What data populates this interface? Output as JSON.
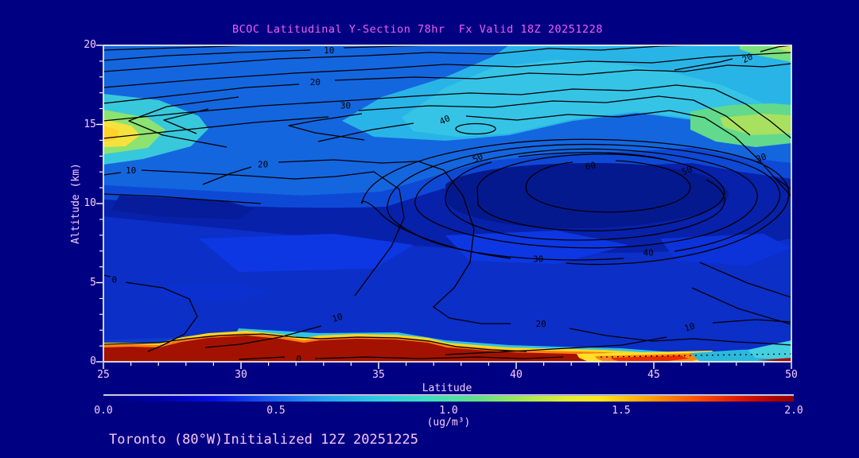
{
  "chart_data": {
    "type": "heatmap",
    "variant": "filled-contour-cross-section",
    "title": "BCOC Latitudinal Y-Section 78hr  Fx Valid 18Z 20251228",
    "annotation": "Toronto (80°W)Initialized 12Z 20251225",
    "xlabel": "Latitude",
    "ylabel": "Altitude (km)",
    "xlim": [
      25,
      50
    ],
    "ylim": [
      0,
      20
    ],
    "x_ticks": [
      25,
      30,
      35,
      40,
      45,
      50
    ],
    "x_minor_tick_step": 1,
    "y_ticks": [
      0,
      5,
      10,
      15,
      20
    ],
    "y_minor_tick_step": 1,
    "grid": false,
    "legend_position": "none",
    "colorbar": {
      "orientation": "horizontal",
      "min": 0.0,
      "max": 2.0,
      "tick_labels": [
        "0.0",
        "0.5",
        "1.0",
        "1.5",
        "2.0"
      ],
      "units_label": "(ug/m³)",
      "palette": [
        "#000080",
        "#0010e0",
        "#1a5af0",
        "#22a0ee",
        "#2ccce2",
        "#3ce0c0",
        "#62e088",
        "#9ce858",
        "#e2ee30",
        "#ffe818",
        "#ffa000",
        "#ff5000",
        "#e01800",
        "#b00000",
        "#900000"
      ]
    },
    "contour_lines": {
      "labeled_levels": [
        0,
        10,
        20,
        30,
        40,
        50,
        60
      ],
      "interval": 5,
      "color": "#000000"
    },
    "contour_labels": [
      {
        "text": "10",
        "lat": 33.2,
        "alt": 19.7,
        "rot": 0
      },
      {
        "text": "20",
        "lat": 32.7,
        "alt": 17.7,
        "rot": 0
      },
      {
        "text": "30",
        "lat": 33.8,
        "alt": 16.2,
        "rot": 0
      },
      {
        "text": "40",
        "lat": 37.4,
        "alt": 15.3,
        "rot": -25
      },
      {
        "text": "20",
        "lat": 48.4,
        "alt": 19.2,
        "rot": -25
      },
      {
        "text": "30",
        "lat": 48.9,
        "alt": 12.9,
        "rot": -20
      },
      {
        "text": "50",
        "lat": 38.6,
        "alt": 12.9,
        "rot": -28
      },
      {
        "text": "60",
        "lat": 42.7,
        "alt": 12.4,
        "rot": -10
      },
      {
        "text": "50",
        "lat": 46.2,
        "alt": 12.1,
        "rot": -22
      },
      {
        "text": "20",
        "lat": 30.8,
        "alt": 12.5,
        "rot": 0
      },
      {
        "text": "10",
        "lat": 26.0,
        "alt": 12.1,
        "rot": 0
      },
      {
        "text": "30",
        "lat": 40.8,
        "alt": 6.5,
        "rot": 0
      },
      {
        "text": "40",
        "lat": 44.8,
        "alt": 6.9,
        "rot": 0
      },
      {
        "text": "0",
        "lat": 25.4,
        "alt": 5.2,
        "rot": 0
      },
      {
        "text": "10",
        "lat": 33.5,
        "alt": 2.8,
        "rot": -18
      },
      {
        "text": "0",
        "lat": 32.1,
        "alt": 0.2,
        "rot": 0
      },
      {
        "text": "20",
        "lat": 40.9,
        "alt": 2.4,
        "rot": 0
      },
      {
        "text": "10",
        "lat": 46.3,
        "alt": 2.2,
        "rot": -18
      }
    ],
    "fill_field": {
      "units": "ug/m³",
      "lats": [
        25,
        27.5,
        30,
        32.5,
        35,
        37.5,
        40,
        42.5,
        45,
        47.5,
        50
      ],
      "alts_km": [
        20,
        18,
        16,
        15,
        14,
        12,
        10,
        8,
        6,
        4,
        2,
        1,
        0
      ],
      "values": [
        [
          0.45,
          0.45,
          0.45,
          0.45,
          0.5,
          0.55,
          0.6,
          0.6,
          0.65,
          0.8,
          0.9
        ],
        [
          0.45,
          0.45,
          0.45,
          0.45,
          0.5,
          0.55,
          0.6,
          0.6,
          0.6,
          0.65,
          0.7
        ],
        [
          0.55,
          0.5,
          0.45,
          0.5,
          0.55,
          0.6,
          0.6,
          0.65,
          0.65,
          0.7,
          0.75
        ],
        [
          1.2,
          0.7,
          0.5,
          0.5,
          0.55,
          0.6,
          0.65,
          0.65,
          0.7,
          0.9,
          1.0
        ],
        [
          0.8,
          0.6,
          0.5,
          0.5,
          0.55,
          0.6,
          0.6,
          0.65,
          0.7,
          0.75,
          0.7
        ],
        [
          0.3,
          0.3,
          0.3,
          0.3,
          0.28,
          0.22,
          0.2,
          0.2,
          0.2,
          0.25,
          0.35
        ],
        [
          0.3,
          0.28,
          0.3,
          0.3,
          0.28,
          0.25,
          0.22,
          0.2,
          0.22,
          0.25,
          0.3
        ],
        [
          0.3,
          0.3,
          0.32,
          0.3,
          0.3,
          0.28,
          0.25,
          0.25,
          0.25,
          0.28,
          0.3
        ],
        [
          0.32,
          0.35,
          0.35,
          0.4,
          0.38,
          0.35,
          0.3,
          0.3,
          0.35,
          0.35,
          0.32
        ],
        [
          0.35,
          0.35,
          0.38,
          0.4,
          0.4,
          0.38,
          0.35,
          0.35,
          0.38,
          0.35,
          0.35
        ],
        [
          0.4,
          0.45,
          0.5,
          0.45,
          0.4,
          0.4,
          0.4,
          0.4,
          0.45,
          0.4,
          0.45
        ],
        [
          0.6,
          1.0,
          2.0,
          1.6,
          0.8,
          0.6,
          0.5,
          0.6,
          1.0,
          0.6,
          0.7
        ],
        [
          2.0,
          2.0,
          2.0,
          2.0,
          2.0,
          2.0,
          1.9,
          1.8,
          1.9,
          0.9,
          1.6
        ]
      ]
    }
  },
  "colors": {
    "background": "#000082",
    "title_text": "#f25ef2",
    "axis_text": "#f9cef9",
    "frame": "#ffffff",
    "contour_line": "#000000",
    "surface_max_fill": "#a31200"
  }
}
